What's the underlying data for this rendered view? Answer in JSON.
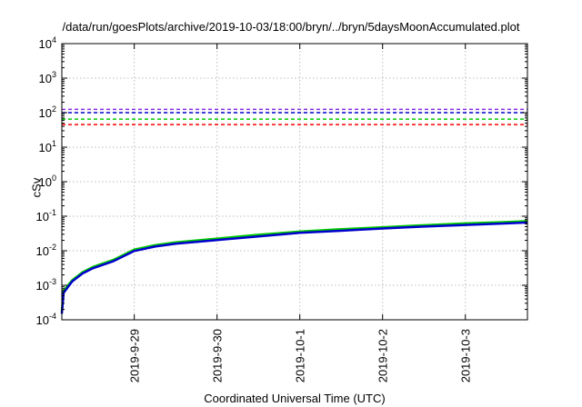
{
  "chart_data": {
    "type": "line",
    "title": "/data/run/goesPlots/archive/2019-10-03/18:00/bryn/../bryn/5daysMoonAccumulated.plot",
    "xlabel": "Coordinated Universal Time (UTC)",
    "ylabel": "cSv",
    "yscale": "log",
    "ylim": [
      0.0001,
      10000
    ],
    "xlim": [
      "2019-09-28 03:00",
      "2019-10-03 18:00"
    ],
    "grid": true,
    "x_ticks": [
      "2019-9-29",
      "2019-9-30",
      "2019-10-1",
      "2019-10-2",
      "2019-10-3"
    ],
    "y_ticks": [
      {
        "base": "10",
        "exp": "-4"
      },
      {
        "base": "10",
        "exp": "-3"
      },
      {
        "base": "10",
        "exp": "-2"
      },
      {
        "base": "10",
        "exp": "-1"
      },
      {
        "base": "10",
        "exp": "0"
      },
      {
        "base": "10",
        "exp": "1"
      },
      {
        "base": "10",
        "exp": "2"
      },
      {
        "base": "10",
        "exp": "3"
      },
      {
        "base": "10",
        "exp": "4"
      }
    ],
    "thresholds": [
      {
        "value": 125,
        "color": "#8a2be2",
        "style": "dashed"
      },
      {
        "value": 100,
        "color": "#0000cc",
        "style": "dashed"
      },
      {
        "value": 65,
        "color": "#00cc00",
        "style": "dashed"
      },
      {
        "value": 45,
        "color": "#ff0000",
        "style": "dashed"
      }
    ],
    "series": [
      {
        "color": "#00cc00",
        "x": [
          "2019-09-28 03:00",
          "2019-09-28 03:30",
          "2019-09-28 06:00",
          "2019-09-28 09:00",
          "2019-09-28 12:00",
          "2019-09-28 18:00",
          "2019-09-29 00:00",
          "2019-09-29 06:00",
          "2019-09-29 12:00",
          "2019-09-30 00:00",
          "2019-09-30 12:00",
          "2019-10-01 00:00",
          "2019-10-01 12:00",
          "2019-10-02 00:00",
          "2019-10-02 12:00",
          "2019-10-03 00:00",
          "2019-10-03 12:00",
          "2019-10-03 18:00"
        ],
        "y": [
          0.00017,
          0.0007,
          0.0014,
          0.0024,
          0.0034,
          0.0055,
          0.0108,
          0.0145,
          0.0175,
          0.0225,
          0.029,
          0.036,
          0.042,
          0.048,
          0.055,
          0.062,
          0.068,
          0.072
        ]
      },
      {
        "color": "#0000cc",
        "x": [
          "2019-09-28 03:00",
          "2019-09-28 03:30",
          "2019-09-28 06:00",
          "2019-09-28 09:00",
          "2019-09-28 12:00",
          "2019-09-28 18:00",
          "2019-09-29 00:00",
          "2019-09-29 06:00",
          "2019-09-29 12:00",
          "2019-09-30 00:00",
          "2019-09-30 12:00",
          "2019-10-01 00:00",
          "2019-10-01 12:00",
          "2019-10-02 00:00",
          "2019-10-02 12:00",
          "2019-10-03 00:00",
          "2019-10-03 12:00",
          "2019-10-03 18:00"
        ],
        "y": [
          0.00015,
          0.0006,
          0.0013,
          0.0022,
          0.0031,
          0.005,
          0.0098,
          0.0132,
          0.016,
          0.0205,
          0.026,
          0.033,
          0.038,
          0.044,
          0.05,
          0.056,
          0.062,
          0.066
        ]
      }
    ]
  }
}
